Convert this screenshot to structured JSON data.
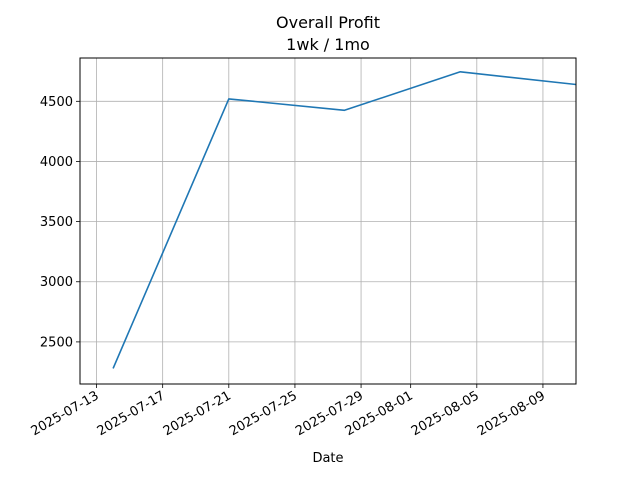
{
  "chart_data": {
    "type": "line",
    "title": "Overall Profit",
    "subtitle": "1wk / 1mo",
    "xlabel": "Date",
    "ylabel": "",
    "x_type": "date",
    "xlim": [
      "2025-07-12",
      "2025-08-11"
    ],
    "ylim": [
      2150,
      4860
    ],
    "grid": true,
    "xticks": [
      "2025-07-13",
      "2025-07-17",
      "2025-07-21",
      "2025-07-25",
      "2025-07-29",
      "2025-08-01",
      "2025-08-05",
      "2025-08-09"
    ],
    "yticks": [
      2500,
      3000,
      3500,
      4000,
      4500
    ],
    "series": [
      {
        "color": "#1f77b4",
        "x": [
          "2025-07-14",
          "2025-07-21",
          "2025-07-28",
          "2025-08-04",
          "2025-08-11"
        ],
        "y": [
          2280,
          4520,
          4425,
          4745,
          4640
        ]
      }
    ]
  }
}
